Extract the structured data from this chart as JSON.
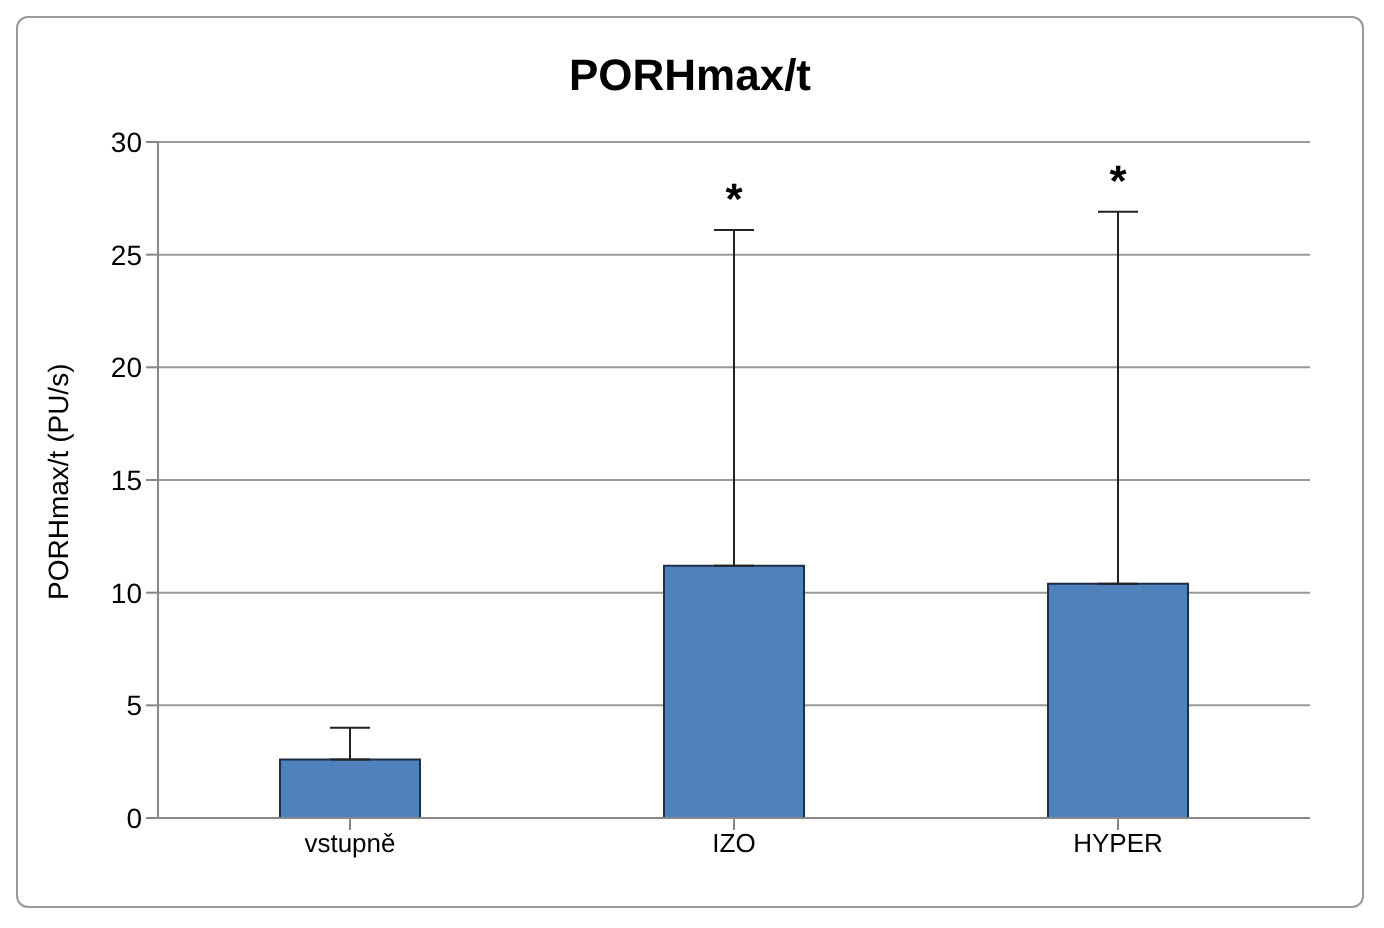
{
  "chart_data": {
    "type": "bar",
    "title": "PORHmax/t",
    "ylabel": "PORHmax/t (PU/s)",
    "categories": [
      "vstupně",
      "IZO",
      "HYPER"
    ],
    "series": [
      {
        "color": "#4f81bd",
        "values": [
          2.6,
          11.2,
          10.4
        ],
        "errors": [
          [
            2.6,
            4.0
          ],
          [
            11.2,
            26.1
          ],
          [
            10.4,
            26.9
          ]
        ]
      }
    ],
    "ylim": [
      0,
      30
    ],
    "yticks": [
      0,
      5,
      10,
      15,
      20,
      25,
      30
    ],
    "grid": "y",
    "legend": false,
    "annotations": [
      {
        "text": "*",
        "x": "IZO",
        "y": 26.1
      },
      {
        "text": "*",
        "x": "HYPER",
        "y": 26.9
      }
    ]
  }
}
